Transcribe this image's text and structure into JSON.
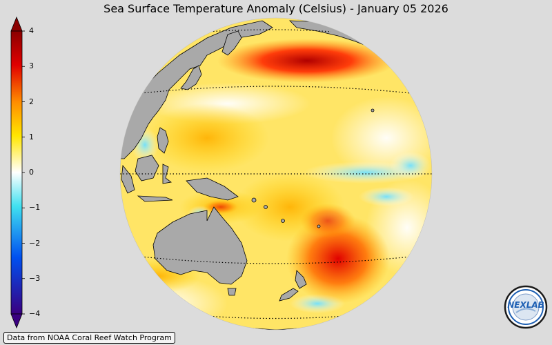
{
  "title": "Sea Surface Temperature Anomaly (Celsius) - January 05 2026",
  "colorbar": {
    "min": -4,
    "max": 4,
    "ticks": [
      "4",
      "3",
      "2",
      "1",
      "0",
      "−1",
      "−2",
      "−3",
      "−4"
    ],
    "tick_values": [
      4,
      3,
      2,
      1,
      0,
      -1,
      -2,
      -3,
      -4
    ],
    "colors": {
      "hi": "#8b0000",
      "red": "#e00000",
      "orange": "#ff8c00",
      "yellow": "#ffe600",
      "white": "#ffffff",
      "cyan": "#40e0f0",
      "blue": "#0050f0",
      "lo": "#3a0080"
    }
  },
  "map": {
    "land_color": "#a9a9a9",
    "background_color": "#dcdcdc",
    "hot_anomaly_color": "#ff2a00",
    "warm_anomaly_color": "#ffd200",
    "cool_anomaly_color": "#7fe6ff"
  },
  "source_note": "Data from NOAA Coral Reef Watch Program",
  "logo": {
    "text": "NEXLAB",
    "ring_color": "#1d5fb3"
  }
}
